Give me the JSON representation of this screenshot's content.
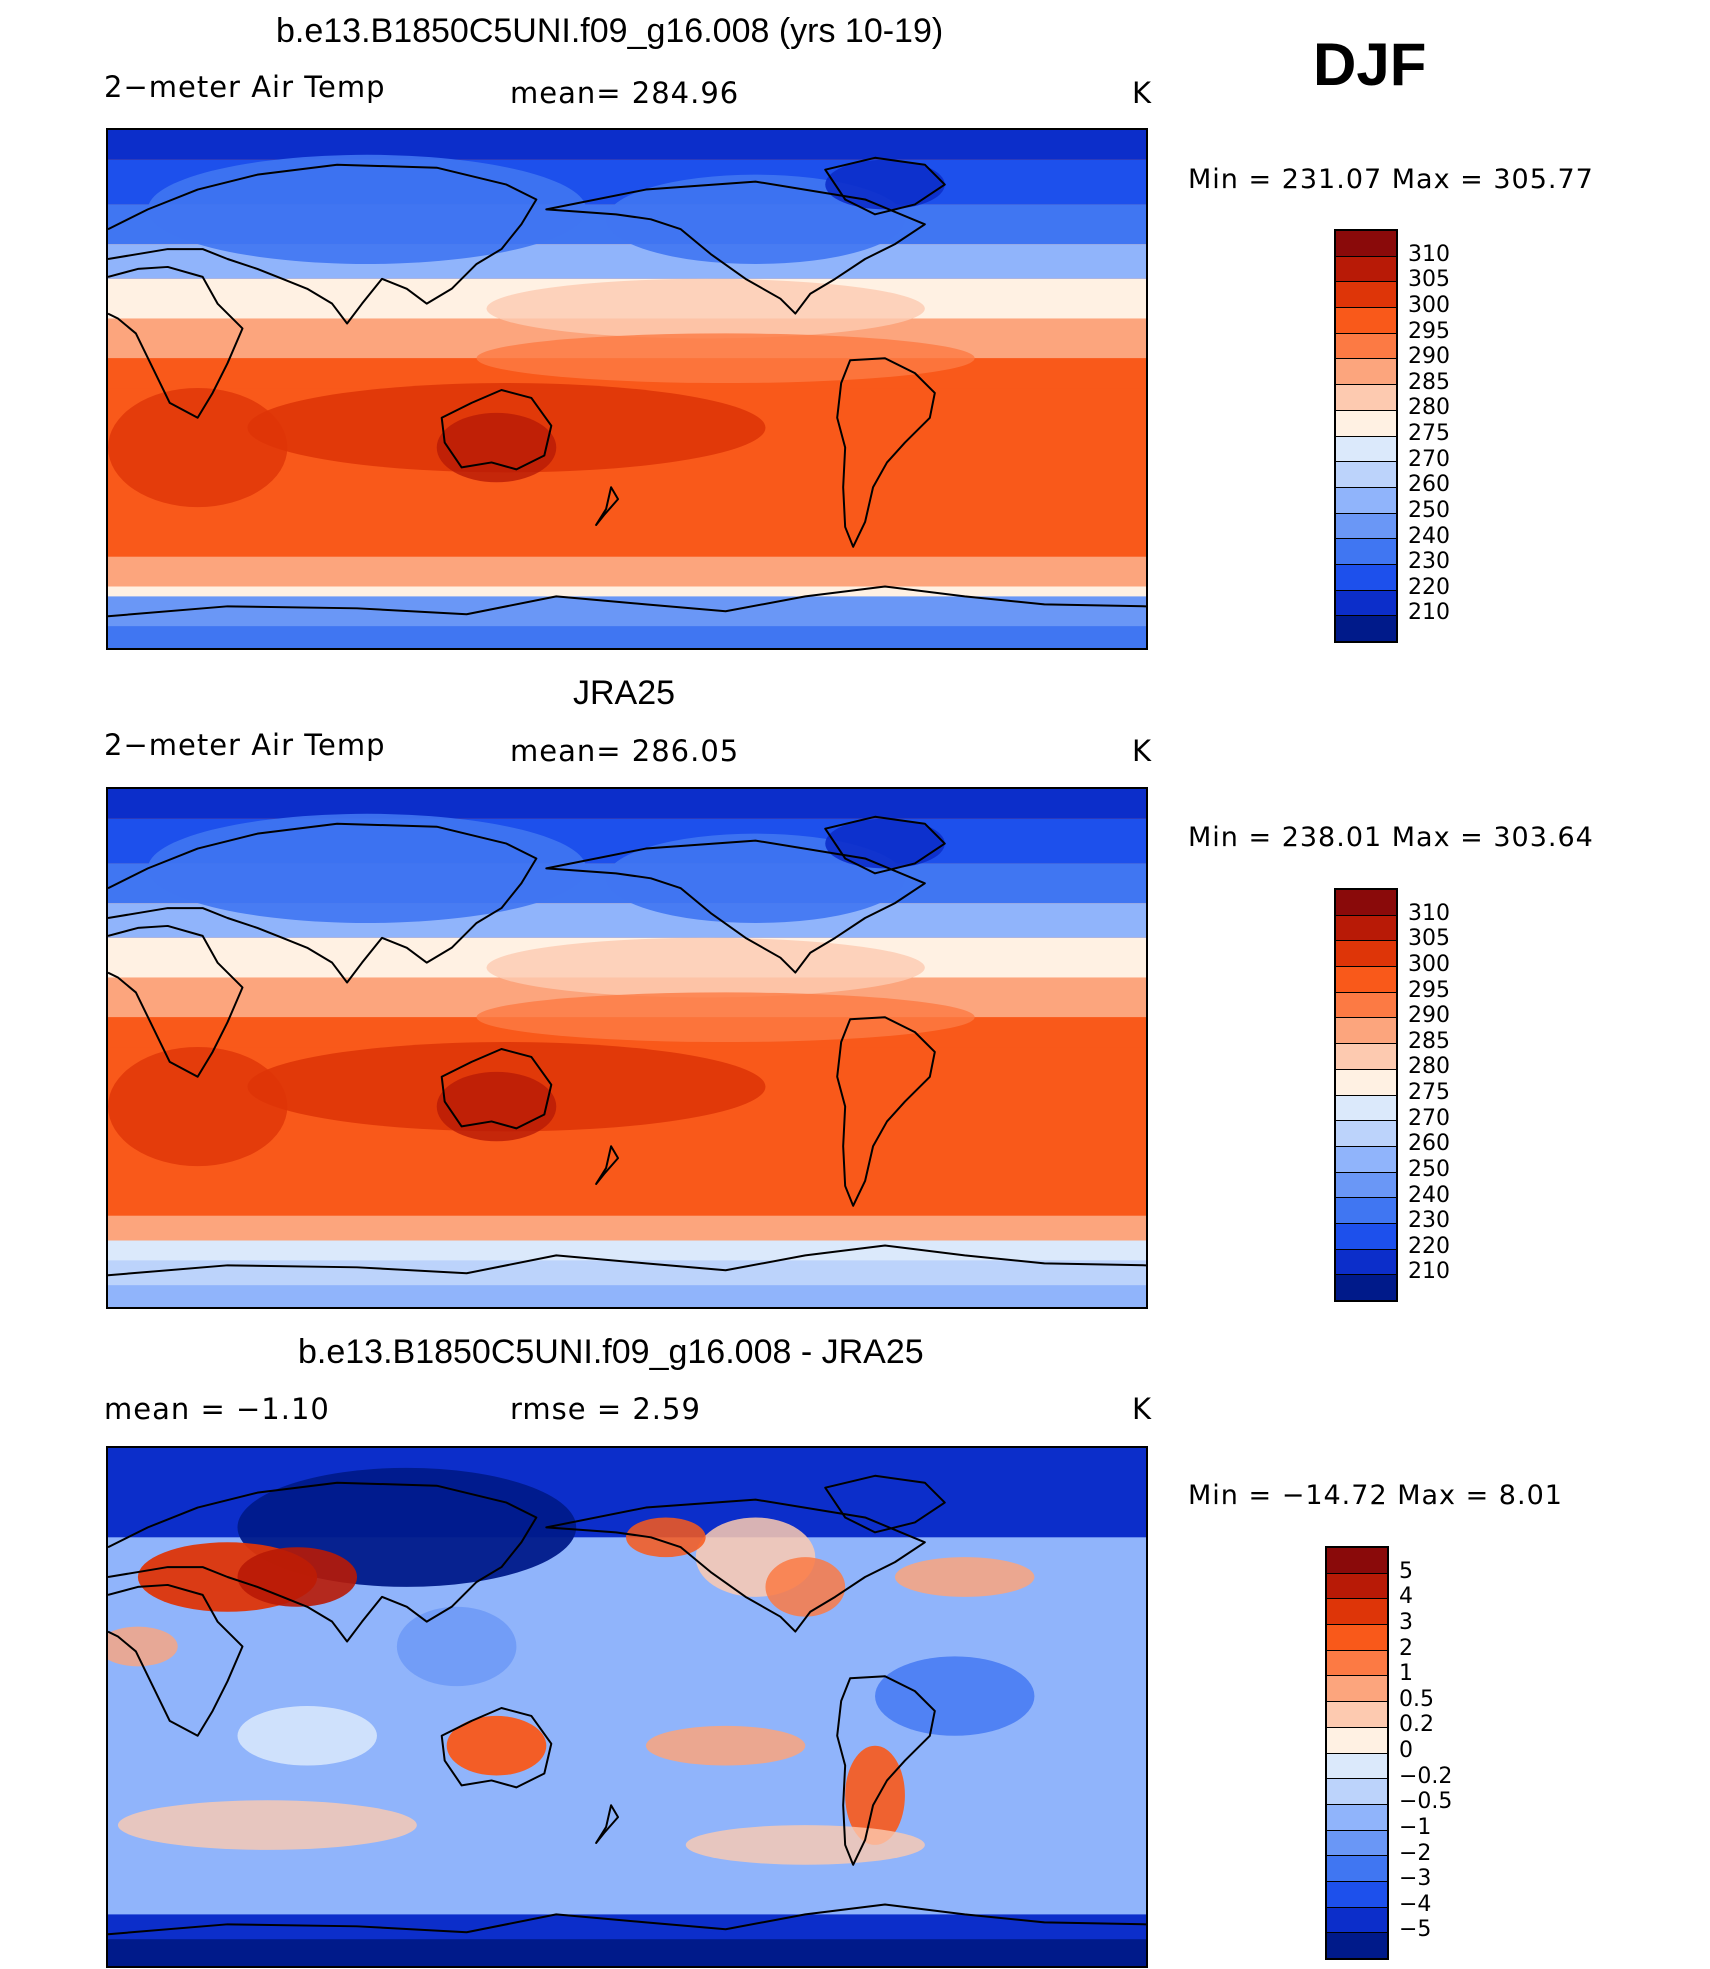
{
  "season": "DJF",
  "panels": [
    {
      "id": "model",
      "title": "b.e13.B1850C5UNI.f09_g16.008 (yrs 10-19)",
      "left_label": "2−meter Air Temp",
      "stat_label": "mean= 284.96",
      "unit": "K",
      "minmax": "Min  =  231.07  Max  =  305.77",
      "field_type": "absolute",
      "colorbar": {
        "levels": [
          "310",
          "305",
          "300",
          "295",
          "290",
          "285",
          "280",
          "275",
          "270",
          "260",
          "250",
          "240",
          "230",
          "220",
          "210"
        ],
        "colors": [
          "#8a0a0a",
          "#b81a06",
          "#de3508",
          "#f9591a",
          "#fc7a44",
          "#fca57d",
          "#fdcab0",
          "#fff1e3",
          "#dbe9fb",
          "#bcd3fb",
          "#90b4fb",
          "#6a97f6",
          "#4076f2",
          "#1d50ec",
          "#0c2eca",
          "#001a8a"
        ]
      }
    },
    {
      "id": "obs",
      "title": "JRA25",
      "left_label": "2−meter Air Temp",
      "stat_label": "mean= 286.05",
      "unit": "K",
      "minmax": "Min  =  238.01  Max  =  303.64",
      "field_type": "absolute",
      "colorbar": {
        "levels": [
          "310",
          "305",
          "300",
          "295",
          "290",
          "285",
          "280",
          "275",
          "270",
          "260",
          "250",
          "240",
          "230",
          "220",
          "210"
        ],
        "colors": [
          "#8a0a0a",
          "#b81a06",
          "#de3508",
          "#f9591a",
          "#fc7a44",
          "#fca57d",
          "#fdcab0",
          "#fff1e3",
          "#dbe9fb",
          "#bcd3fb",
          "#90b4fb",
          "#6a97f6",
          "#4076f2",
          "#1d50ec",
          "#0c2eca",
          "#001a8a"
        ]
      }
    },
    {
      "id": "diff",
      "title": "b.e13.B1850C5UNI.f09_g16.008 - JRA25",
      "left_label": "mean =    −1.10",
      "stat_label": "rmse =     2.59",
      "unit": "K",
      "minmax": "Min  =  −14.72  Max  =      8.01",
      "field_type": "difference",
      "colorbar": {
        "levels": [
          "5",
          "4",
          "3",
          "2",
          "1",
          "0.5",
          "0.2",
          "0",
          "−0.2",
          "−0.5",
          "−1",
          "−2",
          "−3",
          "−4",
          "−5"
        ],
        "colors": [
          "#8a0a0a",
          "#b81a06",
          "#de3508",
          "#f9591a",
          "#fc7a44",
          "#fca57d",
          "#fdcab0",
          "#fff1e3",
          "#dbe9fb",
          "#bcd3fb",
          "#90b4fb",
          "#6a97f6",
          "#4076f2",
          "#1d50ec",
          "#0c2eca",
          "#001a8a"
        ]
      }
    }
  ]
}
